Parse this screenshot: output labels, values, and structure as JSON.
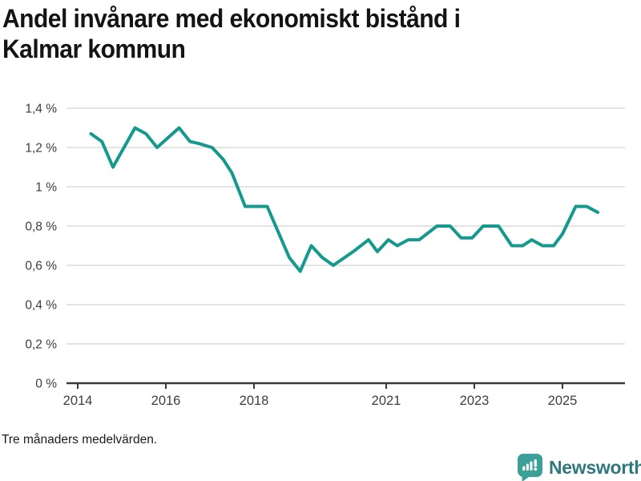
{
  "title": {
    "line1": "Andel invånare med ekonomiskt bistånd i",
    "line2": "Kalmar kommun"
  },
  "footer": {
    "note": "Tre månaders medelvärden.",
    "brand": "Newsworthy",
    "logo_icon": "newsworthy-bar-chart-bubble"
  },
  "colors": {
    "line": "#14998c",
    "grid": "#e0e0e0",
    "axis": "#3a3a3a",
    "tick_label": "#3d3d3d",
    "title": "#141414",
    "logo_icon": "#3aa098",
    "logo_text": "#2f787d"
  },
  "chart_data": {
    "type": "line",
    "title": "Andel invånare med ekonomiskt bistånd i Kalmar kommun",
    "note": "Tre månaders medelvärden.",
    "unit": "%",
    "xlim": [
      2013.75,
      2026.4
    ],
    "ylim": [
      0,
      1.4
    ],
    "grid": "horizontal",
    "legend": "none",
    "y_ticks": [
      {
        "value": 0.0,
        "label": "0 %"
      },
      {
        "value": 0.2,
        "label": "0,2 %"
      },
      {
        "value": 0.4,
        "label": "0,4 %"
      },
      {
        "value": 0.6,
        "label": "0,6 %"
      },
      {
        "value": 0.8,
        "label": "0,8 %"
      },
      {
        "value": 1.0,
        "label": "1 %"
      },
      {
        "value": 1.2,
        "label": "1,2 %"
      },
      {
        "value": 1.4,
        "label": "1,4 %"
      }
    ],
    "x_ticks": [
      {
        "year": 2014,
        "label": "2014"
      },
      {
        "year": 2016,
        "label": "2016"
      },
      {
        "year": 2018,
        "label": "2018"
      },
      {
        "year": 2021,
        "label": "2021"
      },
      {
        "year": 2023,
        "label": "2023"
      },
      {
        "year": 2025,
        "label": "2025"
      }
    ],
    "series": [
      {
        "name": "Andel invånare med ekonomiskt bistånd",
        "color": "#14998c",
        "points": [
          [
            2014.3,
            1.27
          ],
          [
            2014.55,
            1.23
          ],
          [
            2014.8,
            1.1
          ],
          [
            2015.3,
            1.3
          ],
          [
            2015.55,
            1.27
          ],
          [
            2015.8,
            1.2
          ],
          [
            2016.3,
            1.3
          ],
          [
            2016.55,
            1.23
          ],
          [
            2016.75,
            1.22
          ],
          [
            2017.05,
            1.2
          ],
          [
            2017.3,
            1.14
          ],
          [
            2017.5,
            1.07
          ],
          [
            2017.8,
            0.9
          ],
          [
            2018.3,
            0.9
          ],
          [
            2018.8,
            0.64
          ],
          [
            2019.05,
            0.57
          ],
          [
            2019.3,
            0.7
          ],
          [
            2019.55,
            0.64
          ],
          [
            2019.8,
            0.6
          ],
          [
            2020.25,
            0.67
          ],
          [
            2020.6,
            0.73
          ],
          [
            2020.8,
            0.67
          ],
          [
            2021.05,
            0.73
          ],
          [
            2021.25,
            0.7
          ],
          [
            2021.5,
            0.73
          ],
          [
            2021.75,
            0.73
          ],
          [
            2022.15,
            0.8
          ],
          [
            2022.45,
            0.8
          ],
          [
            2022.7,
            0.74
          ],
          [
            2022.95,
            0.74
          ],
          [
            2023.2,
            0.8
          ],
          [
            2023.55,
            0.8
          ],
          [
            2023.85,
            0.7
          ],
          [
            2024.1,
            0.7
          ],
          [
            2024.3,
            0.73
          ],
          [
            2024.55,
            0.7
          ],
          [
            2024.8,
            0.7
          ],
          [
            2025.0,
            0.76
          ],
          [
            2025.3,
            0.9
          ],
          [
            2025.55,
            0.9
          ],
          [
            2025.8,
            0.87
          ]
        ]
      }
    ]
  }
}
